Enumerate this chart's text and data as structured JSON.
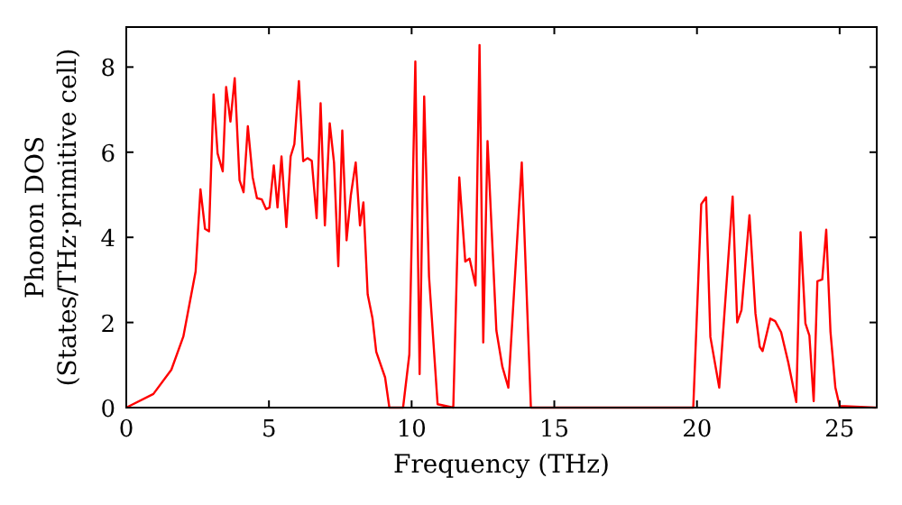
{
  "chart_data": {
    "type": "line",
    "xlabel": "Frequency (THz)",
    "ylabel": "Phonon DOS\n(States/THz·primitive cell)",
    "xlim": [
      0,
      26.3
    ],
    "ylim": [
      0,
      8.94
    ],
    "xticks": [
      0,
      5,
      10,
      15,
      20,
      25
    ],
    "yticks": [
      0,
      2,
      4,
      6,
      8
    ],
    "grid": false,
    "marker": "none",
    "line_style": "solid",
    "x": [
      0,
      0.95,
      1.58,
      2.0,
      2.43,
      2.6,
      2.76,
      2.9,
      3.06,
      3.2,
      3.38,
      3.5,
      3.65,
      3.8,
      3.97,
      4.11,
      4.26,
      4.43,
      4.58,
      4.75,
      4.9,
      5.02,
      5.17,
      5.3,
      5.44,
      5.61,
      5.76,
      5.89,
      6.05,
      6.2,
      6.35,
      6.5,
      6.67,
      6.81,
      6.96,
      7.13,
      7.28,
      7.43,
      7.57,
      7.72,
      7.87,
      8.04,
      8.19,
      8.31,
      8.46,
      8.63,
      8.76,
      9.07,
      9.22,
      9.7,
      9.92,
      10.13,
      10.28,
      10.44,
      10.61,
      10.91,
      11.46,
      11.67,
      11.88,
      12.03,
      12.24,
      12.38,
      12.51,
      12.66,
      12.97,
      13.18,
      13.39,
      13.86,
      14.18,
      19.87,
      20.15,
      20.32,
      20.47,
      20.78,
      21.25,
      21.41,
      21.56,
      21.84,
      22.05,
      22.2,
      22.3,
      22.57,
      22.74,
      22.95,
      23.2,
      23.48,
      23.63,
      23.8,
      23.94,
      24.09,
      24.22,
      24.39,
      24.53,
      24.68,
      24.85,
      25.0,
      26.27
    ],
    "series": [
      {
        "color": "#ff0000",
        "values": [
          0,
          0.32,
          0.89,
          1.67,
          3.2,
          5.13,
          4.2,
          4.14,
          7.36,
          5.97,
          5.55,
          7.53,
          6.72,
          7.74,
          5.34,
          5.06,
          6.61,
          5.41,
          4.92,
          4.89,
          4.66,
          4.7,
          5.69,
          4.7,
          5.9,
          4.24,
          5.9,
          6.19,
          7.67,
          5.79,
          5.86,
          5.8,
          4.45,
          7.15,
          4.28,
          6.68,
          5.76,
          3.32,
          6.51,
          3.93,
          4.99,
          5.76,
          4.28,
          4.82,
          2.66,
          2.09,
          1.31,
          0.71,
          0,
          0,
          1.25,
          8.13,
          0.79,
          7.31,
          3.08,
          0.08,
          0,
          5.41,
          3.43,
          3.5,
          2.87,
          8.52,
          1.53,
          6.26,
          1.81,
          0.96,
          0.47,
          5.76,
          0,
          0,
          4.78,
          4.94,
          1.66,
          0.47,
          4.96,
          2.0,
          2.29,
          4.52,
          2.21,
          1.43,
          1.33,
          2.09,
          2.03,
          1.77,
          1.06,
          0.13,
          4.12,
          1.98,
          1.69,
          0.15,
          2.97,
          3.01,
          4.18,
          1.77,
          0.47,
          0.04,
          0
        ]
      }
    ]
  }
}
